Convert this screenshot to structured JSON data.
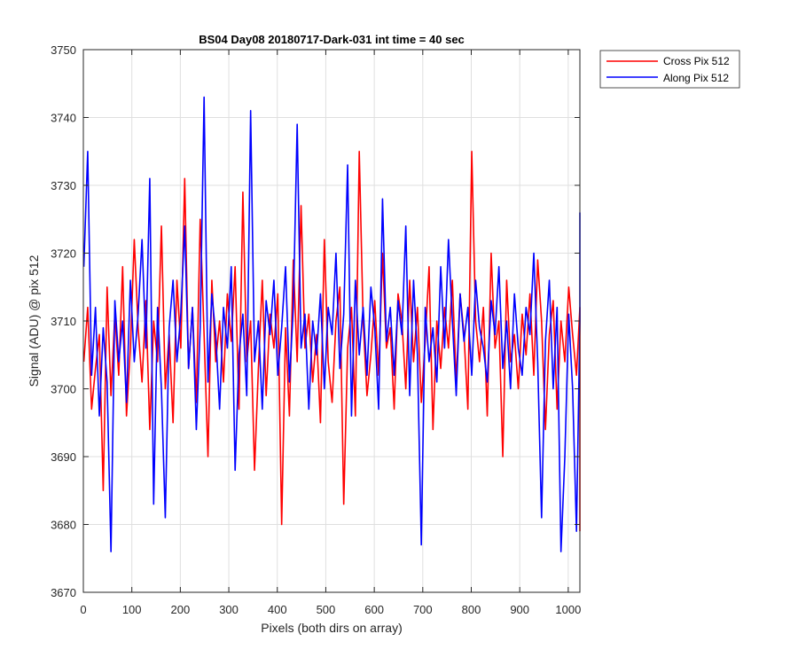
{
  "chart_data": {
    "type": "line",
    "title": "BS04 Day08 20180717-Dark-031 int time = 40 sec",
    "xlabel": "Pixels (both dirs on array)",
    "ylabel": "Signal (ADU) @ pix 512",
    "xlim": [
      0,
      1024
    ],
    "ylim": [
      3670,
      3750
    ],
    "xticks": [
      0,
      100,
      200,
      300,
      400,
      500,
      600,
      700,
      800,
      900,
      1000
    ],
    "yticks": [
      3670,
      3680,
      3690,
      3700,
      3710,
      3720,
      3730,
      3740,
      3750
    ],
    "grid": true,
    "legend_position": "outside-top-right",
    "series_colors": {
      "cross": "#ff0000",
      "along": "#0000ff"
    },
    "x_start": 1,
    "x_step": 8,
    "series": [
      {
        "name": "Cross Pix 512",
        "color": "#ff0000",
        "values": [
          3704,
          3712,
          3697,
          3703,
          3708,
          3685,
          3715,
          3699,
          3711,
          3702,
          3718,
          3696,
          3706,
          3722,
          3709,
          3701,
          3713,
          3694,
          3710,
          3704,
          3724,
          3700,
          3708,
          3695,
          3716,
          3706,
          3731,
          3703,
          3712,
          3698,
          3725,
          3708,
          3690,
          3716,
          3704,
          3710,
          3701,
          3714,
          3707,
          3718,
          3697,
          3729,
          3704,
          3710,
          3688,
          3703,
          3716,
          3699,
          3711,
          3706,
          3714,
          3680,
          3709,
          3696,
          3719,
          3704,
          3727,
          3706,
          3711,
          3701,
          3708,
          3695,
          3722,
          3704,
          3698,
          3710,
          3715,
          3683,
          3706,
          3712,
          3696,
          3735,
          3710,
          3699,
          3705,
          3713,
          3702,
          3720,
          3706,
          3709,
          3697,
          3714,
          3710,
          3700,
          3716,
          3704,
          3712,
          3698,
          3707,
          3718,
          3694,
          3710,
          3703,
          3712,
          3706,
          3716,
          3701,
          3714,
          3708,
          3697,
          3735,
          3710,
          3704,
          3712,
          3696,
          3720,
          3706,
          3710,
          3690,
          3716,
          3704,
          3708,
          3700,
          3711,
          3705,
          3714,
          3702,
          3719,
          3710,
          3694,
          3708,
          3713,
          3697,
          3710,
          3704,
          3715,
          3708,
          3702,
          3712,
          3679
        ]
      },
      {
        "name": "Along Pix 512",
        "color": "#0000ff",
        "values": [
          3718,
          3735,
          3702,
          3712,
          3696,
          3709,
          3701,
          3676,
          3713,
          3704,
          3710,
          3698,
          3716,
          3704,
          3711,
          3722,
          3706,
          3731,
          3683,
          3712,
          3700,
          3681,
          3709,
          3716,
          3704,
          3711,
          3724,
          3703,
          3712,
          3694,
          3709,
          3743,
          3701,
          3714,
          3708,
          3697,
          3712,
          3706,
          3718,
          3688,
          3705,
          3711,
          3699,
          3741,
          3704,
          3710,
          3697,
          3713,
          3708,
          3716,
          3702,
          3709,
          3718,
          3701,
          3712,
          3739,
          3706,
          3711,
          3697,
          3710,
          3705,
          3714,
          3700,
          3712,
          3708,
          3720,
          3703,
          3711,
          3733,
          3696,
          3716,
          3705,
          3712,
          3702,
          3715,
          3709,
          3697,
          3728,
          3707,
          3712,
          3702,
          3713,
          3708,
          3724,
          3699,
          3716,
          3705,
          3677,
          3712,
          3704,
          3709,
          3701,
          3718,
          3706,
          3722,
          3710,
          3699,
          3714,
          3707,
          3712,
          3702,
          3716,
          3709,
          3706,
          3701,
          3713,
          3708,
          3718,
          3703,
          3710,
          3700,
          3714,
          3706,
          3702,
          3712,
          3708,
          3720,
          3704,
          3681,
          3707,
          3716,
          3700,
          3712,
          3676,
          3690,
          3711,
          3700,
          3679,
          3710,
          3726
        ]
      }
    ]
  }
}
